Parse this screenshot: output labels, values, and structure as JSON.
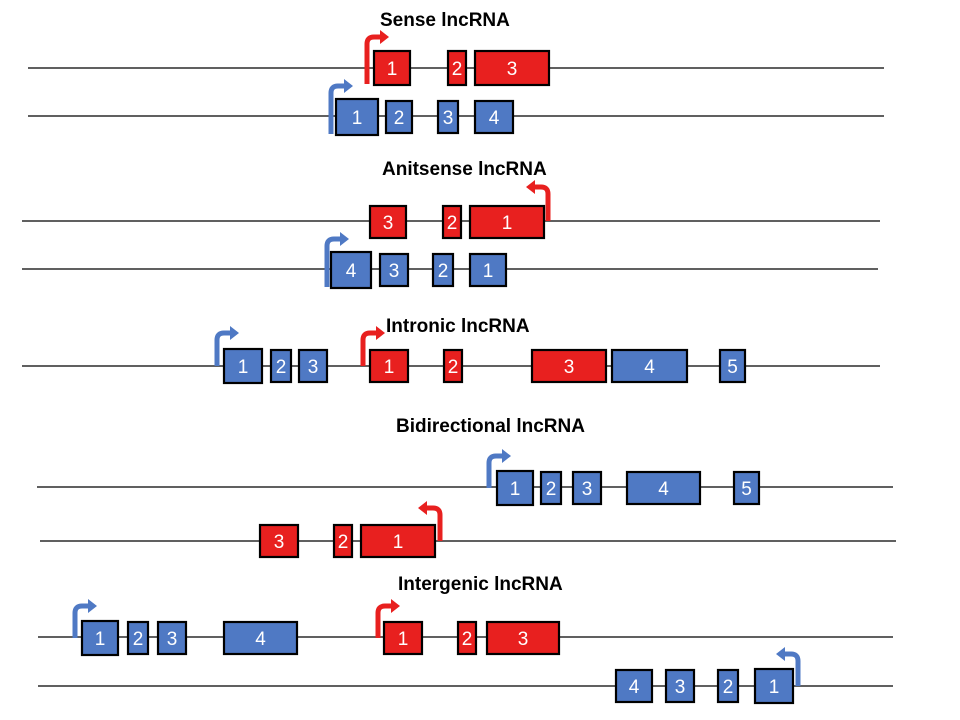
{
  "colors": {
    "lncrna": "#e8201f",
    "gene": "#4f79c4",
    "outline": "#000000",
    "line": "#000000",
    "exon_text": "#ffffff"
  },
  "panels": [
    {
      "title": "Sense lncRNA"
    },
    {
      "title": "Anitsense lncRNA"
    },
    {
      "title": "Intronic lncRNA"
    },
    {
      "title": "Bidirectional lncRNA"
    },
    {
      "title": "Intergenic lncRNA"
    }
  ],
  "exons": {
    "sense_lnc": [
      "1",
      "2",
      "3"
    ],
    "sense_gene": [
      "1",
      "2",
      "3",
      "4"
    ],
    "antisense_lnc": [
      "3",
      "2",
      "1"
    ],
    "antisense_gene": [
      "4",
      "3",
      "2",
      "1"
    ],
    "intronic_gene_a": [
      "1",
      "2",
      "3"
    ],
    "intronic_lnc": [
      "1",
      "2",
      "3"
    ],
    "intronic_gene_b": [
      "4",
      "5"
    ],
    "bidirectional_gene": [
      "1",
      "2",
      "3",
      "4",
      "5"
    ],
    "bidirectional_lnc": [
      "3",
      "2",
      "1"
    ],
    "intergenic_gene_a": [
      "1",
      "2",
      "3",
      "4"
    ],
    "intergenic_lnc": [
      "1",
      "2",
      "3"
    ],
    "intergenic_gene_b": [
      "4",
      "3",
      "2",
      "1"
    ]
  }
}
